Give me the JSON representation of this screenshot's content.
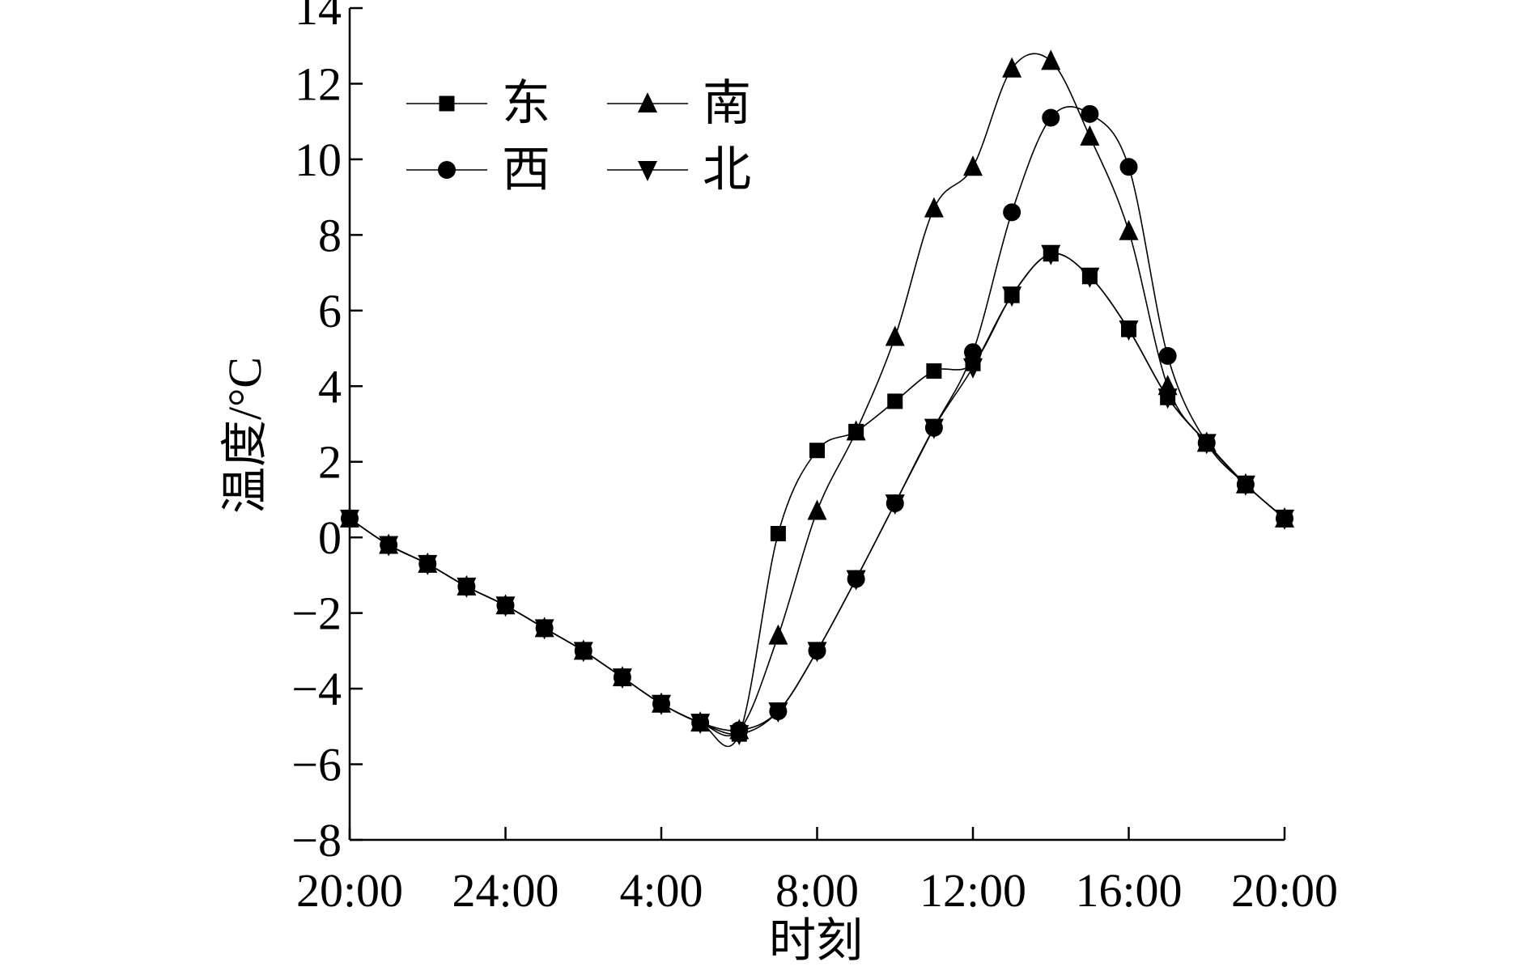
{
  "chart_data": {
    "type": "line",
    "title": "",
    "xlabel": "时刻",
    "ylabel": "温度/°C",
    "x_hours": [
      0,
      1,
      2,
      3,
      4,
      5,
      6,
      7,
      8,
      9,
      10,
      11,
      12,
      13,
      14,
      15,
      16,
      17,
      18,
      19,
      20,
      21,
      22,
      23,
      24
    ],
    "xticks": [
      {
        "hour": 0,
        "label": "20:00"
      },
      {
        "hour": 4,
        "label": "24:00"
      },
      {
        "hour": 8,
        "label": "4:00"
      },
      {
        "hour": 12,
        "label": "8:00"
      },
      {
        "hour": 16,
        "label": "12:00"
      },
      {
        "hour": 20,
        "label": "16:00"
      },
      {
        "hour": 24,
        "label": "20:00"
      }
    ],
    "ylim": [
      -8,
      14
    ],
    "yticks": [
      -8,
      -6,
      -4,
      -2,
      0,
      2,
      4,
      6,
      8,
      10,
      12,
      14
    ],
    "ytick_labels": [
      "−8",
      "−6",
      "−4",
      "−2",
      "0",
      "2",
      "4",
      "6",
      "8",
      "10",
      "12",
      "14"
    ],
    "xlim": [
      0,
      24
    ],
    "legend_position": "top-left",
    "series": [
      {
        "name": "东",
        "marker": "square",
        "values": [
          0.5,
          -0.2,
          -0.7,
          -1.3,
          -1.8,
          -2.4,
          -3.0,
          -3.7,
          -4.4,
          -4.9,
          -5.2,
          0.1,
          2.3,
          2.8,
          3.6,
          4.4,
          4.6,
          6.4,
          7.5,
          6.9,
          5.5,
          3.7,
          2.5,
          1.4,
          0.5
        ]
      },
      {
        "name": "南",
        "marker": "triangle-up",
        "values": [
          0.5,
          -0.2,
          -0.7,
          -1.3,
          -1.8,
          -2.4,
          -3.0,
          -3.7,
          -4.4,
          -4.9,
          -5.1,
          -2.6,
          0.7,
          2.8,
          5.3,
          8.7,
          9.8,
          12.4,
          12.6,
          10.6,
          8.1,
          4.0,
          2.5,
          1.4,
          0.5
        ]
      },
      {
        "name": "西",
        "marker": "circle",
        "values": [
          0.5,
          -0.2,
          -0.7,
          -1.3,
          -1.8,
          -2.4,
          -3.0,
          -3.7,
          -4.4,
          -4.9,
          -5.1,
          -4.6,
          -3.0,
          -1.1,
          0.9,
          2.9,
          4.9,
          8.6,
          11.1,
          11.2,
          9.8,
          4.8,
          2.5,
          1.4,
          0.5
        ]
      },
      {
        "name": "北",
        "marker": "triangle-down",
        "values": [
          0.5,
          -0.2,
          -0.7,
          -1.3,
          -1.8,
          -2.4,
          -3.0,
          -3.7,
          -4.4,
          -4.9,
          -5.2,
          -4.6,
          -3.0,
          -1.1,
          0.9,
          2.9,
          4.5,
          6.4,
          7.5,
          6.9,
          5.5,
          3.7,
          2.5,
          1.4,
          0.5
        ]
      }
    ]
  }
}
